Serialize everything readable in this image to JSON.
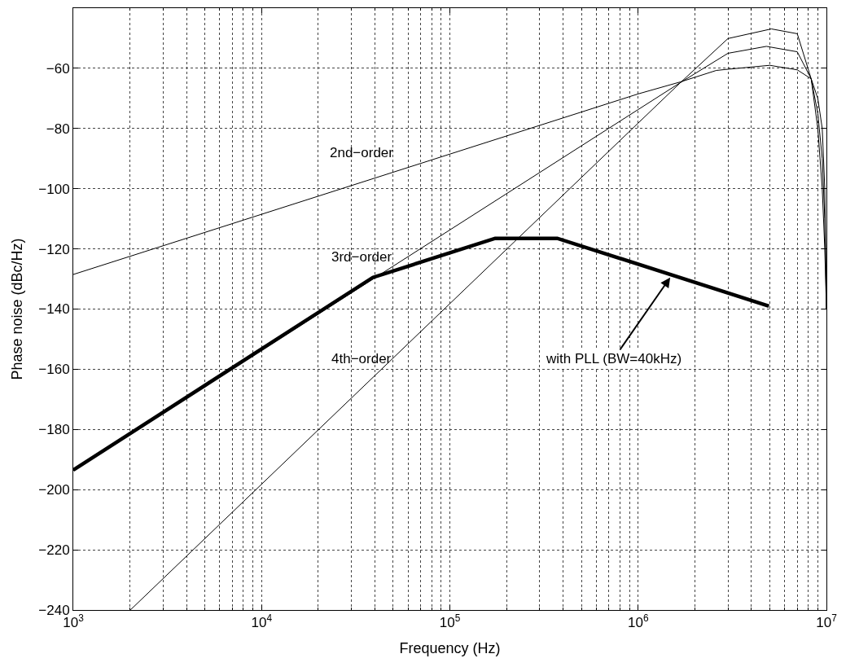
{
  "chart_data": {
    "type": "line",
    "xlabel": "Frequency (Hz)",
    "ylabel": "Phase noise (dBc/Hz)",
    "log": "x",
    "xlim": [
      1000,
      10000000
    ],
    "ylim": [
      -240,
      -40
    ],
    "xticks": [
      {
        "value": 1000,
        "label": "10$^{3}$"
      },
      {
        "value": 10000,
        "label": "10$^{4}$"
      },
      {
        "value": 100000,
        "label": "10$^{5}$"
      },
      {
        "value": 1000000,
        "label": "10$^{6}$"
      },
      {
        "value": 10000000,
        "label": "10$^{7}$"
      }
    ],
    "yticks": [
      -240,
      -220,
      -200,
      -180,
      -160,
      -140,
      -120,
      -100,
      -80,
      -60
    ],
    "grid": true,
    "legend": false,
    "marker": "none",
    "line_style": "solid",
    "series": [
      {
        "name": "2nd−order",
        "color": "#000000",
        "x": [
          1000,
          10000,
          100000,
          1000000,
          1680000,
          2600000,
          3000000,
          5000000,
          7000000,
          8300000,
          9000000,
          9500000,
          9800000,
          10000000
        ],
        "values": [
          -128.5,
          -108.5,
          -88.5,
          -68.5,
          -64.5,
          -60.7,
          -60.3,
          -59,
          -60.5,
          -63.5,
          -70,
          -80,
          -100,
          -140
        ]
      },
      {
        "name": "3rd−order",
        "color": "#000000",
        "x": [
          1000,
          10000,
          100000,
          1000000,
          1680000,
          3000000,
          4800000,
          7000000,
          8300000,
          9000000,
          9500000,
          9800000,
          10000000
        ],
        "values": [
          -193.7,
          -153.7,
          -113.7,
          -73.7,
          -64.7,
          -55,
          -52.7,
          -54.5,
          -63.5,
          -75,
          -90,
          -110,
          -140
        ]
      },
      {
        "name": "4th−order",
        "color": "#000000",
        "x": [
          2010,
          10000,
          100000,
          1000000,
          1680000,
          3000000,
          5100000,
          7000000,
          8300000,
          9000000,
          9500000,
          9800000,
          10000000
        ],
        "values": [
          -240,
          -198.2,
          -138.2,
          -78.2,
          -64.7,
          -50.1,
          -46.9,
          -48.5,
          -63.5,
          -80,
          -100,
          -120,
          -140
        ]
      },
      {
        "color": "#000000",
        "x": [
          1000,
          39000,
          174000,
          372000,
          4950000
        ],
        "values": [
          -193.5,
          -129.5,
          -116.5,
          -116.5,
          -139
        ]
      }
    ],
    "annotations": [
      {
        "text": "with PLL (BW=40kHz)",
        "x": 1480000,
        "y": -129.5
      }
    ]
  }
}
